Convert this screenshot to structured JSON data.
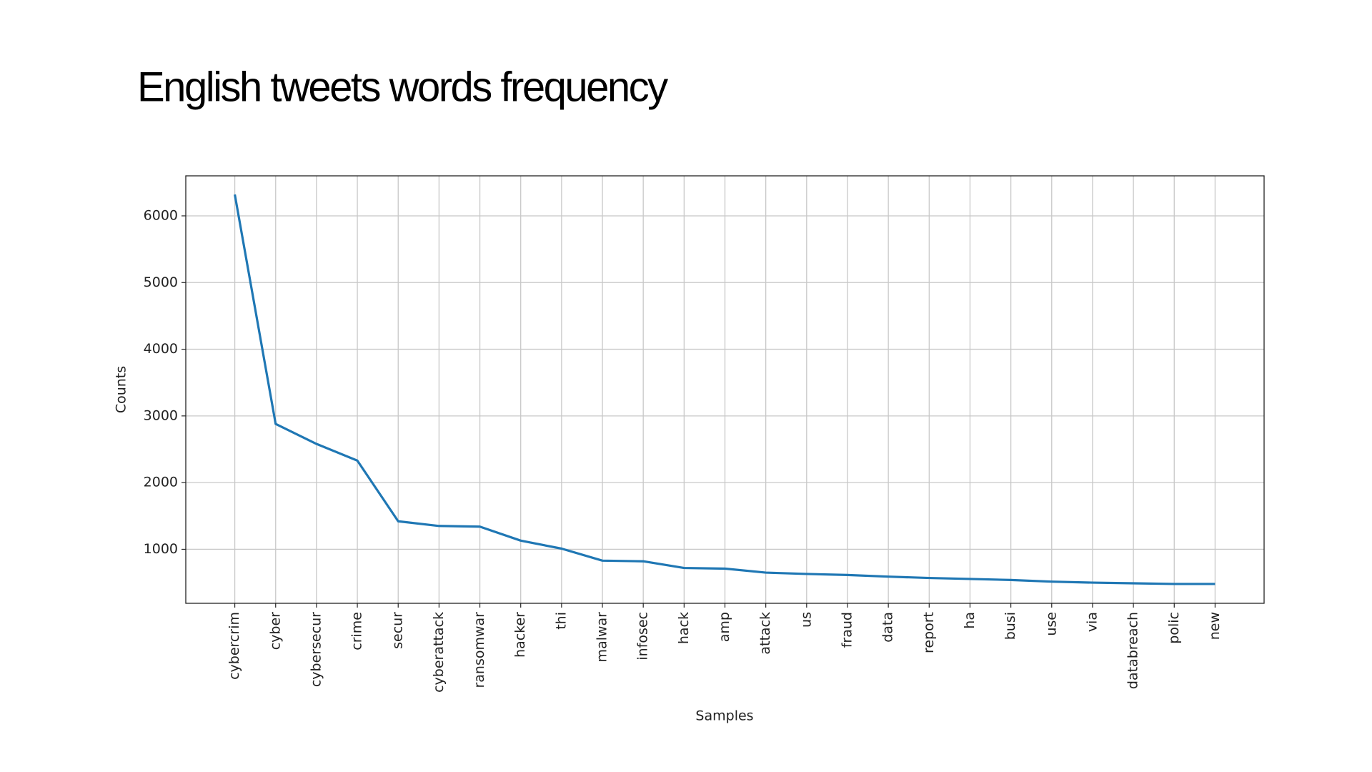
{
  "title": "English tweets words frequency",
  "chart_data": {
    "type": "line",
    "x_label": "Samples",
    "y_label": "Counts",
    "categories": [
      "cybercrim",
      "cyber",
      "cybersecur",
      "crime",
      "secur",
      "cyberattack",
      "ransomwar",
      "hacker",
      "thi",
      "malwar",
      "infosec",
      "hack",
      "amp",
      "attack",
      "us",
      "fraud",
      "data",
      "report",
      "ha",
      "busi",
      "use",
      "via",
      "databreach",
      "polic",
      "new"
    ],
    "values": [
      6320,
      2880,
      2580,
      2330,
      1420,
      1350,
      1340,
      1130,
      1010,
      830,
      820,
      720,
      710,
      650,
      630,
      615,
      590,
      570,
      555,
      540,
      515,
      500,
      490,
      480,
      480
    ],
    "color": "#1f77b4",
    "ylim": [
      190,
      6600
    ],
    "yticks": [
      1000,
      2000,
      3000,
      4000,
      5000,
      6000
    ],
    "grid": true
  }
}
